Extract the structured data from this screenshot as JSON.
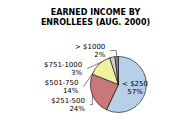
{
  "chart_data": {
    "type": "pie",
    "title": "EARNED INCOME BY\nENROLLEES (AUG. 2000)",
    "categories": [
      "< $250",
      "$251-500",
      "$501-750",
      "$751-1000",
      "> $1000"
    ],
    "values": [
      57,
      24,
      14,
      3,
      2
    ],
    "value_labels": [
      "57%",
      "24%",
      "14%",
      "3%",
      "2%"
    ],
    "colors": [
      "#b8cfe8",
      "#c87878",
      "#f0f0a0",
      "#d0d0d0",
      "#9878a8"
    ],
    "data_labels": true
  }
}
